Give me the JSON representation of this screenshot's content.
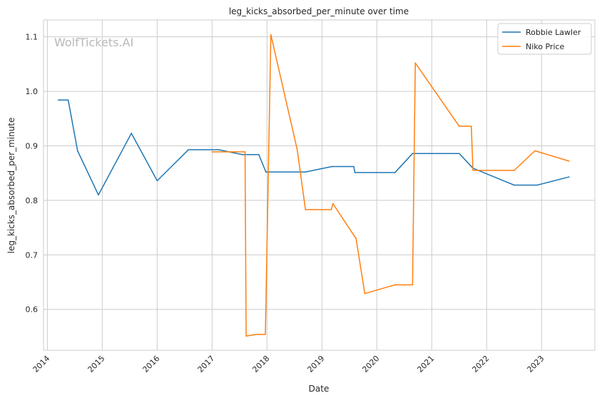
{
  "chart_data": {
    "type": "line",
    "title": "leg_kicks_absorbed_per_minute over time",
    "xlabel": "Date",
    "ylabel": "leg_kicks_absorbed_per_minute",
    "watermark": "WolfTickets.AI",
    "x_tick_labels": [
      "2014",
      "2015",
      "2016",
      "2017",
      "2018",
      "2019",
      "2020",
      "2021",
      "2022",
      "2023"
    ],
    "y_tick_labels": [
      "0.6",
      "0.7",
      "0.8",
      "0.9",
      "1.0",
      "1.1"
    ],
    "xlim": [
      2013.93,
      2023.97
    ],
    "ylim": [
      0.525,
      1.131
    ],
    "grid": true,
    "legend_position": "upper right",
    "series": [
      {
        "name": "Robbie Lawler",
        "color": "#1f77b4",
        "points": [
          [
            2014.2,
            0.984
          ],
          [
            2014.38,
            0.984
          ],
          [
            2014.55,
            0.891
          ],
          [
            2014.93,
            0.81
          ],
          [
            2015.53,
            0.923
          ],
          [
            2016.0,
            0.836
          ],
          [
            2016.57,
            0.893
          ],
          [
            2017.12,
            0.893
          ],
          [
            2017.55,
            0.884
          ],
          [
            2017.85,
            0.884
          ],
          [
            2017.98,
            0.852
          ],
          [
            2018.7,
            0.852
          ],
          [
            2019.18,
            0.862
          ],
          [
            2019.58,
            0.862
          ],
          [
            2019.6,
            0.851
          ],
          [
            2020.33,
            0.851
          ],
          [
            2020.65,
            0.886
          ],
          [
            2021.5,
            0.886
          ],
          [
            2021.75,
            0.859
          ],
          [
            2022.5,
            0.828
          ],
          [
            2022.92,
            0.828
          ],
          [
            2023.5,
            0.843
          ]
        ]
      },
      {
        "name": "Niko Price",
        "color": "#ff7f0e",
        "points": [
          [
            2017.0,
            0.889
          ],
          [
            2017.6,
            0.889
          ],
          [
            2017.62,
            0.551
          ],
          [
            2017.8,
            0.554
          ],
          [
            2017.97,
            0.554
          ],
          [
            2018.07,
            1.104
          ],
          [
            2018.55,
            0.893
          ],
          [
            2018.7,
            0.783
          ],
          [
            2019.17,
            0.783
          ],
          [
            2019.2,
            0.794
          ],
          [
            2019.6,
            0.733
          ],
          [
            2019.62,
            0.731
          ],
          [
            2019.78,
            0.629
          ],
          [
            2020.33,
            0.645
          ],
          [
            2020.65,
            0.645
          ],
          [
            2020.7,
            1.052
          ],
          [
            2021.5,
            0.936
          ],
          [
            2021.72,
            0.936
          ],
          [
            2021.75,
            0.855
          ],
          [
            2022.5,
            0.855
          ],
          [
            2022.88,
            0.891
          ],
          [
            2023.5,
            0.872
          ]
        ]
      }
    ]
  }
}
